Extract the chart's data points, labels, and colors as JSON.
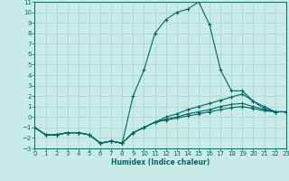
{
  "xlabel": "Humidex (Indice chaleur)",
  "background_color": "#c8ebe8",
  "grid_color": "#a8d4d0",
  "line_color": "#006860",
  "xlim": [
    0,
    23
  ],
  "ylim": [
    -3,
    11
  ],
  "xticks": [
    0,
    1,
    2,
    3,
    4,
    5,
    6,
    7,
    8,
    9,
    10,
    11,
    12,
    13,
    14,
    15,
    16,
    17,
    18,
    19,
    20,
    21,
    22,
    23
  ],
  "yticks": [
    -3,
    -2,
    -1,
    0,
    1,
    2,
    3,
    4,
    5,
    6,
    7,
    8,
    9,
    10,
    11
  ],
  "x": [
    0,
    1,
    2,
    3,
    4,
    5,
    6,
    7,
    8,
    9,
    10,
    11,
    12,
    13,
    14,
    15,
    16,
    17,
    18,
    19,
    20,
    21,
    22,
    23
  ],
  "y_main": [
    -1,
    -1.7,
    -1.7,
    -1.5,
    -1.5,
    -1.7,
    -2.5,
    -2.3,
    -2.5,
    2.0,
    4.5,
    8.0,
    9.3,
    10.0,
    10.3,
    11.0,
    8.8,
    4.5,
    2.5,
    2.5,
    1.5,
    0.8,
    0.5,
    0.5
  ],
  "y_line1": [
    -1,
    -1.7,
    -1.7,
    -1.5,
    -1.5,
    -1.7,
    -2.5,
    -2.3,
    -2.5,
    -1.5,
    -1.0,
    -0.5,
    0.0,
    0.3,
    0.7,
    1.0,
    1.3,
    1.6,
    1.9,
    2.2,
    1.5,
    1.0,
    0.5,
    0.5
  ],
  "y_line2": [
    -1,
    -1.7,
    -1.7,
    -1.5,
    -1.5,
    -1.7,
    -2.5,
    -2.3,
    -2.5,
    -1.5,
    -1.0,
    -0.5,
    -0.2,
    0.0,
    0.3,
    0.5,
    0.7,
    1.0,
    1.2,
    1.3,
    1.0,
    0.7,
    0.5,
    0.5
  ],
  "y_line3": [
    -1,
    -1.7,
    -1.7,
    -1.5,
    -1.5,
    -1.7,
    -2.5,
    -2.3,
    -2.5,
    -1.5,
    -1.0,
    -0.5,
    -0.3,
    -0.1,
    0.1,
    0.3,
    0.5,
    0.7,
    0.9,
    1.0,
    0.8,
    0.6,
    0.5,
    0.5
  ]
}
